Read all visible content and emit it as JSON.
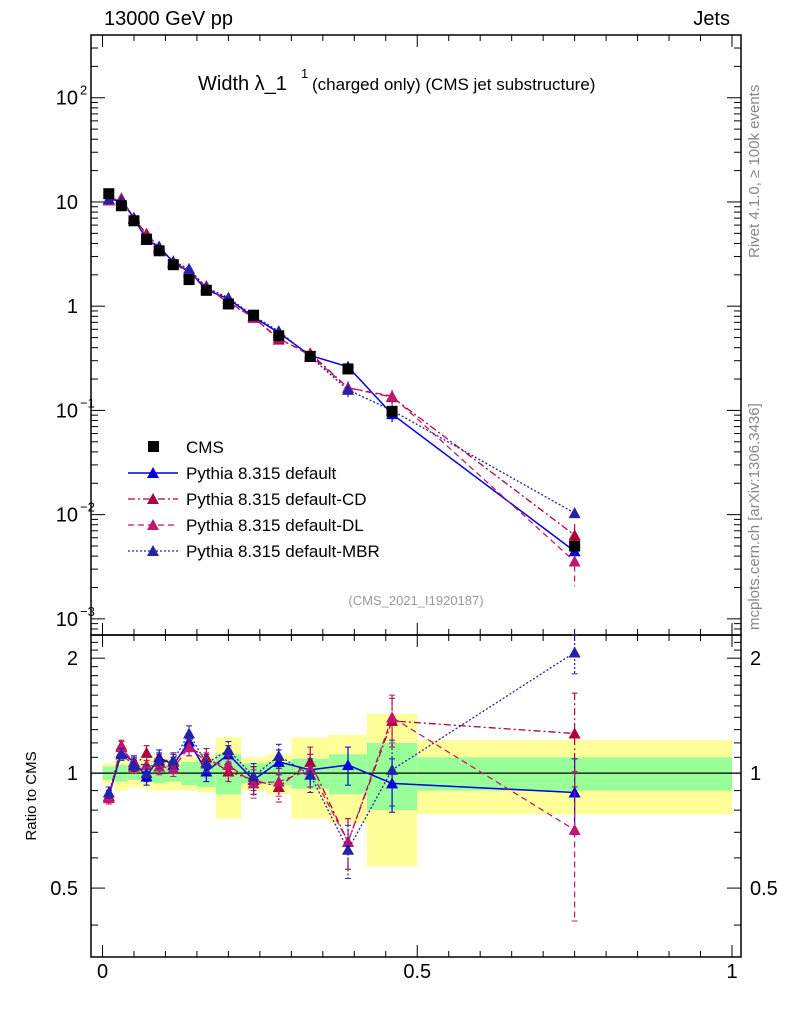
{
  "header": {
    "left": "13000 GeV pp",
    "right": "Jets"
  },
  "side_labels": {
    "rivet": "Rivet 4.1.0, ≥ 100k events",
    "mcplots": "mcplots.cern.ch [arXiv:1306.3436]"
  },
  "chart_data": {
    "type": "scatter",
    "title_main": "Width λ_1",
    "title_sup": "1",
    "title_rest": "(charged only) (CMS jet substructure)",
    "analysis_id": "(CMS_2021_I1920187)",
    "x_ticks": [
      "0",
      "0.5",
      "1"
    ],
    "xlim": [
      0,
      1
    ],
    "top_panel": {
      "scale": "log",
      "ylim": [
        0.0007,
        400
      ],
      "y_ticks": [
        {
          "value": 100,
          "base": "10",
          "exp": "2"
        },
        {
          "value": 10,
          "base": "10",
          "exp": ""
        },
        {
          "value": 1,
          "base": "1",
          "exp": ""
        },
        {
          "value": 0.1,
          "base": "10",
          "exp": "−1"
        },
        {
          "value": 0.01,
          "base": "10",
          "exp": "−2"
        },
        {
          "value": 0.001,
          "base": "10",
          "exp": "−3"
        }
      ]
    },
    "ratio_panel": {
      "ylabel": "Ratio to CMS",
      "ylim": [
        0.33,
        2.3
      ],
      "y_ticks": [
        "0.5",
        "1",
        "2"
      ],
      "y_tick_values": [
        0.5,
        1,
        2
      ]
    },
    "bins": {
      "edges": [
        0,
        0.02,
        0.04,
        0.06,
        0.08,
        0.1,
        0.125,
        0.15,
        0.18,
        0.22,
        0.26,
        0.3,
        0.36,
        0.42,
        0.5,
        1.0
      ],
      "centers": [
        0.01,
        0.03,
        0.05,
        0.07,
        0.09,
        0.1125,
        0.1375,
        0.165,
        0.2,
        0.24,
        0.28,
        0.33,
        0.39,
        0.46,
        0.75
      ],
      "band_stat": [
        0.04,
        0.05,
        0.04,
        0.05,
        0.06,
        0.05,
        0.07,
        0.08,
        0.12,
        0.06,
        0.07,
        0.09,
        0.12,
        0.2,
        0.1
      ],
      "band_total": [
        0.06,
        0.1,
        0.08,
        0.09,
        0.1,
        0.1,
        0.1,
        0.11,
        0.24,
        0.1,
        0.12,
        0.24,
        0.26,
        0.43,
        0.22
      ]
    },
    "legend": [
      "CMS",
      "Pythia 8.315 default",
      "Pythia 8.315 default-CD",
      "Pythia 8.315 default-DL",
      "Pythia 8.315 default-MBR"
    ],
    "series": [
      {
        "name": "CMS",
        "color": "#000000",
        "values": [
          12.0,
          9.2,
          6.6,
          4.4,
          3.4,
          2.5,
          1.8,
          1.42,
          1.05,
          0.82,
          0.52,
          0.33,
          0.25,
          0.098,
          0.005
        ],
        "errors": [
          0,
          0,
          0,
          0,
          0,
          0,
          0,
          0,
          0,
          0,
          0,
          0,
          0,
          0,
          0
        ]
      },
      {
        "name": "Pythia 8.315 default",
        "color": "#0000dd",
        "ratio": [
          0.87,
          1.13,
          1.07,
          0.98,
          1.1,
          1.05,
          1.21,
          1.01,
          1.12,
          0.96,
          1.07,
          1.02,
          1.05,
          0.94,
          0.89
        ],
        "ratio_err": [
          0.03,
          0.04,
          0.04,
          0.05,
          0.05,
          0.05,
          0.06,
          0.06,
          0.06,
          0.08,
          0.08,
          0.1,
          0.12,
          0.15,
          0.2
        ]
      },
      {
        "name": "Pythia 8.315 default-CD",
        "color": "#b00038",
        "ratio": [
          0.87,
          1.18,
          1.04,
          1.13,
          1.07,
          1.07,
          1.17,
          1.1,
          1.01,
          0.96,
          0.92,
          1.07,
          0.66,
          1.37,
          1.27
        ],
        "ratio_err": [
          0.03,
          0.04,
          0.04,
          0.05,
          0.05,
          0.05,
          0.06,
          0.06,
          0.06,
          0.08,
          0.08,
          0.1,
          0.1,
          0.2,
          0.35
        ]
      },
      {
        "name": "Pythia 8.315 default-DL",
        "color": "#c0186c",
        "ratio": [
          0.86,
          1.17,
          1.06,
          1.05,
          1.04,
          1.03,
          1.17,
          1.07,
          1.05,
          0.94,
          0.95,
          1.02,
          0.66,
          1.4,
          0.71
        ],
        "ratio_err": [
          0.03,
          0.04,
          0.04,
          0.05,
          0.05,
          0.05,
          0.06,
          0.06,
          0.06,
          0.08,
          0.08,
          0.1,
          0.1,
          0.2,
          0.3
        ]
      },
      {
        "name": "Pythia 8.315 default-MBR",
        "color": "#2222aa",
        "ratio": [
          0.89,
          1.12,
          1.05,
          1.0,
          1.08,
          1.08,
          1.27,
          1.06,
          1.15,
          0.98,
          1.11,
          0.99,
          0.63,
          1.02,
          2.07
        ],
        "ratio_err": [
          0.03,
          0.04,
          0.04,
          0.05,
          0.05,
          0.05,
          0.06,
          0.06,
          0.06,
          0.08,
          0.08,
          0.1,
          0.1,
          0.2,
          0.25
        ]
      }
    ]
  }
}
